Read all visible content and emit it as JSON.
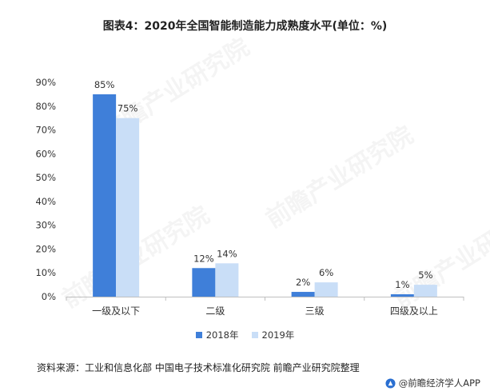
{
  "title": "图表4：2020年全国智能制造能力成熟度水平(单位：%)",
  "source_text": "资料来源：工业和信息化部 中国电子技术标准化研究院 前瞻产业研究院整理",
  "footer_brand": "@前瞻经济学人APP",
  "watermark_text": "前瞻产业研究院",
  "colors": {
    "series_2018": "#3f7fd9",
    "series_2019": "#c9def7",
    "axis": "#bfbfbf",
    "text": "#333333"
  },
  "chart_data": {
    "type": "bar",
    "title": "图表4：2020年全国智能制造能力成熟度水平(单位：%)",
    "categories": [
      "一级及以下",
      "二级",
      "三级",
      "四级及以上"
    ],
    "series": [
      {
        "name": "2018年",
        "values": [
          85,
          12,
          2,
          1
        ],
        "labels": [
          "85%",
          "12%",
          "2%",
          "1%"
        ]
      },
      {
        "name": "2019年",
        "values": [
          75,
          14,
          6,
          5
        ],
        "labels": [
          "75%",
          "14%",
          "6%",
          "5%"
        ]
      }
    ],
    "yticks": [
      "0%",
      "10%",
      "20%",
      "30%",
      "40%",
      "50%",
      "60%",
      "70%",
      "80%",
      "90%"
    ],
    "ylim": [
      0,
      90
    ],
    "xlabel": "",
    "ylabel": "",
    "grid": false,
    "legend_position": "bottom"
  }
}
